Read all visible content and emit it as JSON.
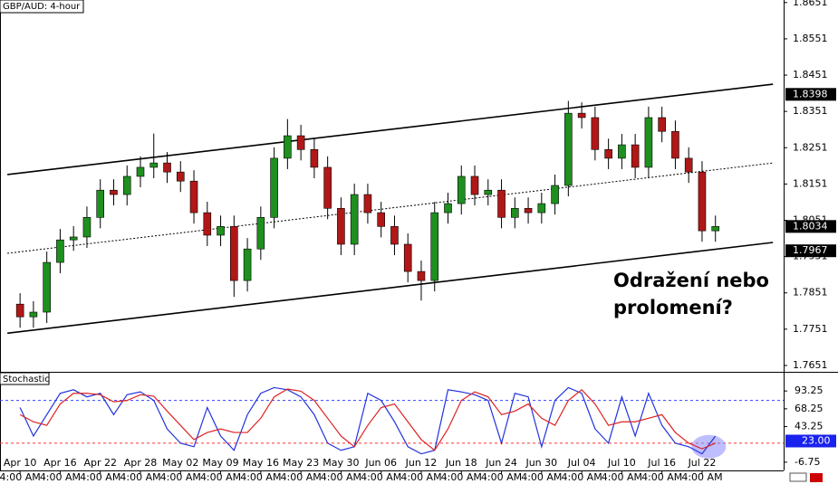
{
  "chart_data": [
    {
      "type": "candlestick",
      "title": "GBP/AUD: 4-hour",
      "open": [
        1.782,
        1.7785,
        1.7798,
        1.7935,
        1.7997,
        1.8005,
        1.8059,
        1.8134,
        1.8122,
        1.8172,
        1.8197,
        1.8209,
        1.8184,
        1.8159,
        1.8072,
        1.801,
        1.8034,
        1.7885,
        1.7972,
        1.8059,
        1.8222,
        1.8284,
        1.8246,
        1.8197,
        1.8084,
        1.7985,
        1.8122,
        1.8072,
        1.8034,
        1.7985,
        1.791,
        1.7885,
        1.8072,
        1.8097,
        1.8172,
        1.8122,
        1.8134,
        1.8059,
        1.8084,
        1.8072,
        1.8097,
        1.8147,
        1.8346,
        1.8334,
        1.8246,
        1.8222,
        1.8259,
        1.8197,
        1.8334,
        1.8296,
        1.8222,
        1.8184,
        1.8022
      ],
      "high": [
        1.785,
        1.7828,
        1.7965,
        1.8027,
        1.8035,
        1.8089,
        1.8164,
        1.8164,
        1.8202,
        1.8227,
        1.829,
        1.8239,
        1.8214,
        1.8189,
        1.8102,
        1.8064,
        1.8064,
        1.8002,
        1.8089,
        1.8252,
        1.833,
        1.8314,
        1.8276,
        1.8227,
        1.8114,
        1.8152,
        1.8152,
        1.8102,
        1.8064,
        1.8015,
        1.794,
        1.8102,
        1.8127,
        1.8202,
        1.8202,
        1.8164,
        1.8164,
        1.8114,
        1.8114,
        1.8127,
        1.8177,
        1.838,
        1.8376,
        1.8364,
        1.8276,
        1.8289,
        1.8289,
        1.8364,
        1.8364,
        1.8326,
        1.8252,
        1.8214,
        1.8064
      ],
      "low": [
        1.7755,
        1.7755,
        1.7768,
        1.7905,
        1.7967,
        1.7975,
        1.8029,
        1.8092,
        1.8092,
        1.8142,
        1.8167,
        1.8154,
        1.8129,
        1.8042,
        1.798,
        1.798,
        1.784,
        1.7855,
        1.7942,
        1.8029,
        1.8192,
        1.8216,
        1.8167,
        1.8054,
        1.7955,
        1.7955,
        1.8042,
        1.8004,
        1.7955,
        1.788,
        1.783,
        1.7855,
        1.8042,
        1.8067,
        1.8092,
        1.8092,
        1.8029,
        1.8029,
        1.8042,
        1.8042,
        1.8067,
        1.8117,
        1.8304,
        1.8216,
        1.8192,
        1.8192,
        1.8167,
        1.8167,
        1.8266,
        1.8192,
        1.8154,
        1.7992,
        1.7992
      ],
      "close": [
        1.7785,
        1.7798,
        1.7935,
        1.7997,
        1.8005,
        1.8059,
        1.8134,
        1.8122,
        1.8172,
        1.8197,
        1.8209,
        1.8184,
        1.8159,
        1.8072,
        1.801,
        1.8034,
        1.7885,
        1.7972,
        1.8059,
        1.8222,
        1.8284,
        1.8246,
        1.8197,
        1.8084,
        1.7985,
        1.8122,
        1.8072,
        1.8034,
        1.7985,
        1.791,
        1.7885,
        1.8072,
        1.8097,
        1.8172,
        1.8122,
        1.8134,
        1.8059,
        1.8084,
        1.8072,
        1.8097,
        1.8147,
        1.8346,
        1.8334,
        1.8246,
        1.8222,
        1.8259,
        1.8197,
        1.8334,
        1.8296,
        1.8222,
        1.8184,
        1.8022,
        1.8034
      ],
      "up_color": "#1f8f1f",
      "down_color": "#b01818",
      "xlim": [
        -1.5,
        57.1
      ],
      "ylim": [
        1.7636,
        1.8658
      ],
      "yticks": [
        1.7651,
        1.7751,
        1.7851,
        1.7951,
        1.8051,
        1.8151,
        1.8251,
        1.8351,
        1.8451,
        1.8551,
        1.8651
      ],
      "price_markers": [
        1.8398,
        1.8034,
        1.7967
      ],
      "trendlines": [
        {
          "x": [
            -0.95,
            56.3
          ],
          "y": [
            1.8177,
            1.8426
          ],
          "style": "solid"
        },
        {
          "x": [
            -0.95,
            56.3
          ],
          "y": [
            1.796,
            1.8209
          ],
          "style": "dotted"
        },
        {
          "x": [
            -0.95,
            56.3
          ],
          "y": [
            1.774,
            1.799
          ],
          "style": "solid"
        }
      ],
      "annotation": [
        "Odražení nebo",
        "prolomení?"
      ]
    },
    {
      "type": "line",
      "title": "Stochastic",
      "series": [
        {
          "color": "#2233dd",
          "values": [
            70,
            30,
            60,
            90,
            95,
            85,
            90,
            60,
            88,
            92,
            80,
            40,
            20,
            15,
            70,
            30,
            10,
            60,
            90,
            98,
            95,
            85,
            60,
            20,
            10,
            15,
            90,
            80,
            50,
            15,
            5,
            10,
            95,
            92,
            88,
            80,
            20,
            90,
            85,
            15,
            80,
            98,
            90,
            40,
            20,
            85,
            30,
            90,
            45,
            20,
            15,
            5,
            30
          ]
        },
        {
          "color": "#dd2222",
          "values": [
            60,
            50,
            45,
            75,
            90,
            90,
            88,
            78,
            80,
            88,
            86,
            65,
            45,
            25,
            35,
            40,
            35,
            35,
            55,
            85,
            96,
            93,
            80,
            55,
            30,
            15,
            45,
            70,
            75,
            50,
            25,
            10,
            40,
            80,
            92,
            85,
            60,
            65,
            75,
            55,
            45,
            80,
            95,
            75,
            45,
            50,
            50,
            55,
            60,
            35,
            20,
            12,
            20
          ]
        }
      ],
      "levels": [
        {
          "value": 80,
          "color": "#3344ff"
        },
        {
          "value": 20,
          "color": "#ff3333"
        }
      ],
      "current_value": {
        "value": 23,
        "label": "23.00"
      },
      "xlim": [
        -1.5,
        57.1
      ],
      "ylim": [
        -18.3,
        118.9
      ],
      "yticks": [
        93.25,
        68.25,
        43.25,
        -6.75
      ],
      "xticks": [
        {
          "value": 0,
          "label": "Apr 10"
        },
        {
          "value": 3,
          "label": "Apr 16"
        },
        {
          "value": 6,
          "label": "Apr 22"
        },
        {
          "value": 9,
          "label": "Apr 28"
        },
        {
          "value": 12,
          "label": "May 02"
        },
        {
          "value": 15,
          "label": "May 09"
        },
        {
          "value": 18,
          "label": "May 16"
        },
        {
          "value": 21,
          "label": "May 23"
        },
        {
          "value": 24,
          "label": "May 30"
        },
        {
          "value": 27,
          "label": "Jun 06"
        },
        {
          "value": 30,
          "label": "Jun 12"
        },
        {
          "value": 33,
          "label": "Jun 18"
        },
        {
          "value": 36,
          "label": "Jun 24"
        },
        {
          "value": 39,
          "label": "Jun 30"
        },
        {
          "value": 42,
          "label": "Jul 04"
        },
        {
          "value": 45,
          "label": "Jul 10"
        },
        {
          "value": 48,
          "label": "Jul 16"
        },
        {
          "value": 51,
          "label": "Jul 22"
        }
      ],
      "xtick_sublabel": "4:00 AM"
    }
  ]
}
